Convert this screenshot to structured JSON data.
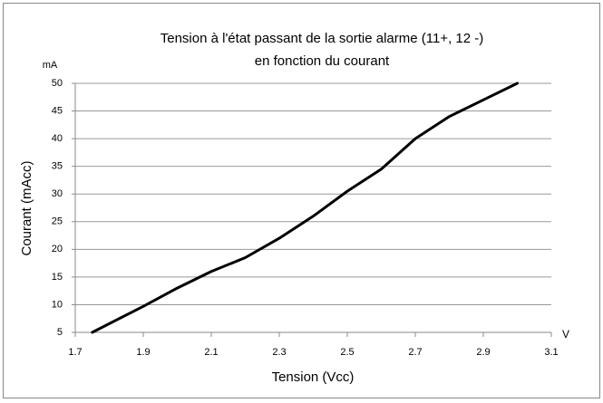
{
  "chart_data": {
    "type": "line",
    "title": [
      "Tension à l'état passant de la sortie alarme (11+, 12 -)",
      "en fonction du courant"
    ],
    "x_label": "Tension (Vcc)",
    "y_label": "Courant (mAcc)",
    "x_unit": "V",
    "y_unit": "mA",
    "x": [
      1.75,
      1.9,
      2.0,
      2.1,
      2.2,
      2.3,
      2.4,
      2.5,
      2.6,
      2.7,
      2.8,
      2.9,
      3.0
    ],
    "series": [
      {
        "color": "#000000",
        "values": [
          5,
          9.7,
          13,
          16,
          18.5,
          22,
          26,
          30.5,
          34.5,
          40,
          44,
          47,
          50
        ]
      }
    ],
    "xlim": [
      1.7,
      3.1
    ],
    "xticks": [
      1.7,
      1.9,
      2.1,
      2.3,
      2.5,
      2.7,
      2.9,
      3.1
    ],
    "ylim": [
      5,
      50
    ],
    "yticks": [
      5,
      10,
      15,
      20,
      25,
      30,
      35,
      40,
      45,
      50
    ],
    "grid": true
  }
}
